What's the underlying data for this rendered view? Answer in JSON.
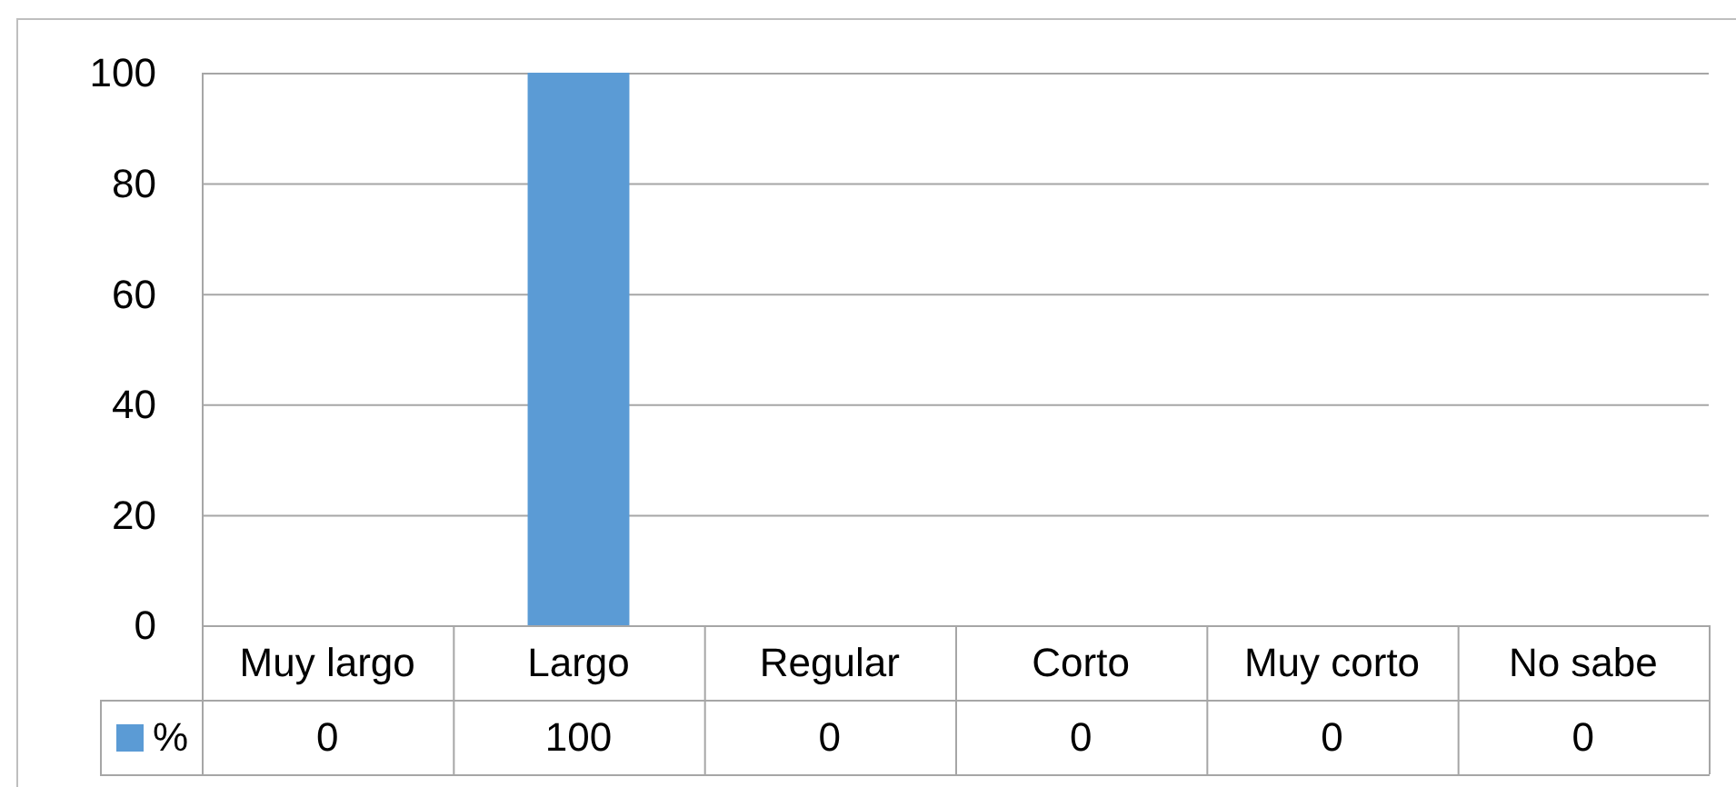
{
  "chart_data": {
    "type": "bar",
    "categories": [
      "Muy largo",
      "Largo",
      "Regular",
      "Corto",
      "Muy corto",
      "No sabe"
    ],
    "series": [
      {
        "name": "%",
        "color": "#5b9bd5",
        "values": [
          0,
          100,
          0,
          0,
          0,
          0
        ]
      }
    ],
    "ylim": [
      0,
      100
    ],
    "yticks": [
      0,
      20,
      40,
      60,
      80,
      100
    ],
    "grid": "y",
    "legend": "bottom",
    "data_labels": true
  }
}
